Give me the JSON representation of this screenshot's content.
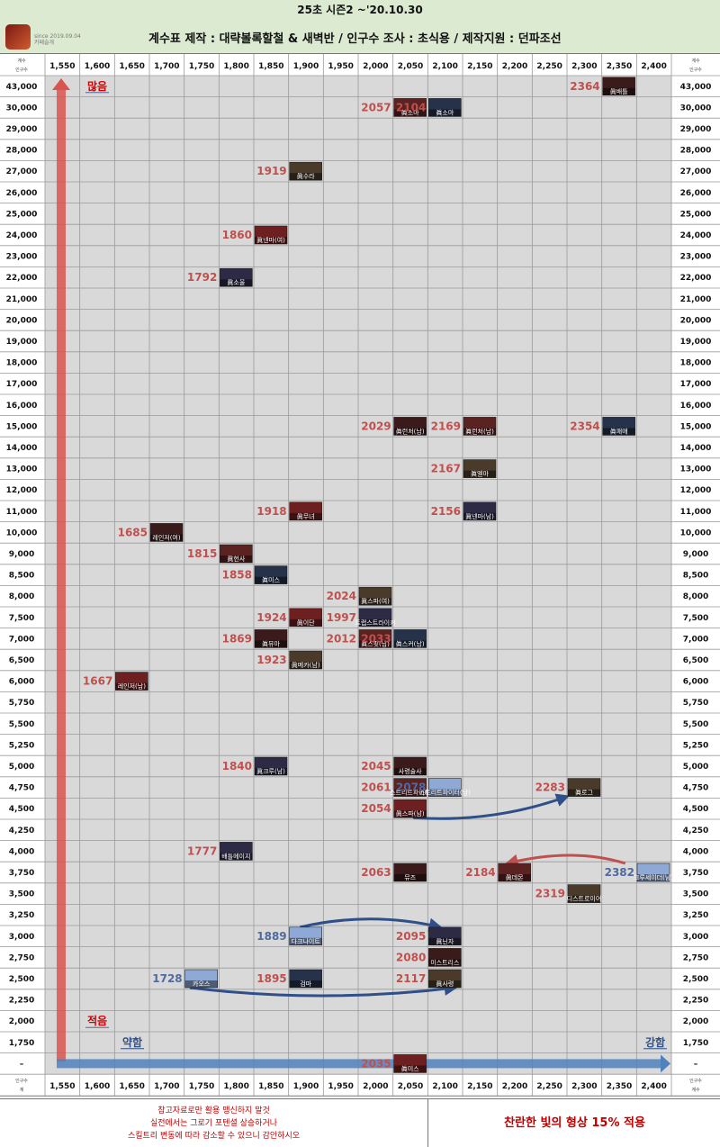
{
  "header": {
    "title": "25초 시즌2   ~'20.10.30",
    "credits": "계수표  제작 : 대략볼록할철 & 새벽반 / 인구수 조사 : 초식용 / 제작지원 : 던파조선",
    "logo_caption_1": "since 2019.09.04",
    "logo_caption_2": "카페슬개"
  },
  "axis": {
    "corner_top_small": "계수",
    "corner_bottom_small": "인구수",
    "corner_top_right_small": "계수",
    "corner_bottom_right_small": "인구수",
    "bottom_left_small_top": "인구수",
    "bottom_left_small_bottom": "계",
    "bottom_right_small_top": "인구수",
    "bottom_right_small_bottom": "계수",
    "x_ticks": [
      "1,550",
      "1,600",
      "1,650",
      "1,700",
      "1,750",
      "1,800",
      "1,850",
      "1,900",
      "1,950",
      "2,000",
      "2,050",
      "2,100",
      "2,150",
      "2,200",
      "2,250",
      "2,300",
      "2,350",
      "2,400"
    ],
    "y_ticks": [
      "43,000",
      "30,000",
      "29,000",
      "28,000",
      "27,000",
      "26,000",
      "25,000",
      "24,000",
      "23,000",
      "22,000",
      "21,000",
      "20,000",
      "19,000",
      "18,000",
      "17,000",
      "16,000",
      "15,000",
      "14,000",
      "13,000",
      "12,000",
      "11,000",
      "10,000",
      "9,000",
      "8,500",
      "8,000",
      "7,500",
      "7,000",
      "6,500",
      "6,000",
      "5,750",
      "5,500",
      "5,250",
      "5,000",
      "4,750",
      "4,500",
      "4,250",
      "4,000",
      "3,750",
      "3,500",
      "3,250",
      "3,000",
      "2,750",
      "2,500",
      "2,250",
      "2,000",
      "1,750",
      "–"
    ],
    "labels": {
      "many": "많음",
      "few": "적음",
      "weak": "약함",
      "strong": "강함"
    }
  },
  "chart_data": {
    "type": "scatter",
    "title": "25초 시즌2   ~'20.10.30",
    "xlabel": "계수",
    "ylabel": "인구수",
    "grid": true,
    "points": [
      {
        "x": 2364,
        "y": "43,000",
        "label": "眞배틀",
        "color": "#c0504d"
      },
      {
        "x": 2057,
        "y": "30,000",
        "label": "眞소마",
        "color": "#c0504d"
      },
      {
        "x": 2104,
        "y": "30,000",
        "label": "眞소마",
        "color": "#c0504d"
      },
      {
        "x": 1919,
        "y": "27,000",
        "label": "眞수라",
        "color": "#c0504d"
      },
      {
        "x": 1860,
        "y": "24,000",
        "label": "眞넨마(여)",
        "color": "#c0504d"
      },
      {
        "x": 1792,
        "y": "22,000",
        "label": "眞소울",
        "color": "#c0504d"
      },
      {
        "x": 2029,
        "y": "15,000",
        "label": "眞런처(남)",
        "color": "#c0504d"
      },
      {
        "x": 2169,
        "y": "15,000",
        "label": "眞런처(남)",
        "color": "#c0504d"
      },
      {
        "x": 2354,
        "y": "15,000",
        "label": "眞패매",
        "color": "#c0504d"
      },
      {
        "x": 2167,
        "y": "13,000",
        "label": "眞엘마",
        "color": "#c0504d"
      },
      {
        "x": 1918,
        "y": "11,000",
        "label": "眞무녀",
        "color": "#c0504d"
      },
      {
        "x": 2156,
        "y": "11,000",
        "label": "眞넨마(남)",
        "color": "#c0504d"
      },
      {
        "x": 1685,
        "y": "10,000",
        "label": "레인저(여)",
        "color": "#c0504d"
      },
      {
        "x": 1815,
        "y": "9,000",
        "label": "眞헌사",
        "color": "#c0504d"
      },
      {
        "x": 1858,
        "y": "8,500",
        "label": "眞미스",
        "color": "#c0504d"
      },
      {
        "x": 2024,
        "y": "8,000",
        "label": "眞스파(여)",
        "color": "#c0504d"
      },
      {
        "x": 1924,
        "y": "7,500",
        "label": "眞이단",
        "color": "#c0504d"
      },
      {
        "x": 1997,
        "y": "7,500",
        "label": "트랩스트라이커",
        "color": "#c0504d"
      },
      {
        "x": 1869,
        "y": "7,000",
        "label": "眞뮤마",
        "color": "#c0504d"
      },
      {
        "x": 2012,
        "y": "7,000",
        "label": "眞스핏(남)",
        "color": "#c0504d"
      },
      {
        "x": 2033,
        "y": "7,000",
        "label": "眞스커(남)",
        "color": "#c0504d"
      },
      {
        "x": 1923,
        "y": "6,500",
        "label": "眞메카(남)",
        "color": "#c0504d"
      },
      {
        "x": 1667,
        "y": "6,000",
        "label": "레인저(남)",
        "color": "#c0504d"
      },
      {
        "x": 1840,
        "y": "5,000",
        "label": "眞크루(남)",
        "color": "#c0504d"
      },
      {
        "x": 2045,
        "y": "5,000",
        "label": "사령술사",
        "color": "#c0504d"
      },
      {
        "x": 2061,
        "y": "4,750",
        "label": "스트리트파이터",
        "color": "#c0504d"
      },
      {
        "x": 2078,
        "y": "4,750",
        "label": "스트리트파이터(남)",
        "color": "#4f6a9e"
      },
      {
        "x": 2283,
        "y": "4,750",
        "label": "眞로그",
        "color": "#c0504d"
      },
      {
        "x": 2054,
        "y": "4,500",
        "label": "眞스파(남)",
        "color": "#c0504d"
      },
      {
        "x": 1777,
        "y": "4,000",
        "label": "배틀메이지",
        "color": "#c0504d"
      },
      {
        "x": 2063,
        "y": "3,750",
        "label": "뮤즈",
        "color": "#c0504d"
      },
      {
        "x": 2184,
        "y": "3,750",
        "label": "眞데몬",
        "color": "#c0504d"
      },
      {
        "x": 2382,
        "y": "3,750",
        "label": "크루세이더(남)",
        "color": "#4f6a9e"
      },
      {
        "x": 2319,
        "y": "3,500",
        "label": "디스트로이어",
        "color": "#c0504d"
      },
      {
        "x": 1889,
        "y": "3,000",
        "label": "다크나이트",
        "color": "#4f6a9e"
      },
      {
        "x": 2095,
        "y": "3,000",
        "label": "眞닌자",
        "color": "#c0504d"
      },
      {
        "x": 2080,
        "y": "2,750",
        "label": "미스트리스",
        "color": "#c0504d"
      },
      {
        "x": 1728,
        "y": "2,500",
        "label": "카오스",
        "color": "#4f6a9e"
      },
      {
        "x": 1895,
        "y": "2,500",
        "label": "검마",
        "color": "#c0504d"
      },
      {
        "x": 2117,
        "y": "2,500",
        "label": "眞사령",
        "color": "#c0504d"
      },
      {
        "x": 2035,
        "y": "–",
        "label": "眞미스",
        "color": "#c0504d"
      }
    ],
    "arrows": [
      {
        "from": "2054 · 4,500",
        "to": "2283 · 4,750",
        "color": "#2e4f88"
      },
      {
        "from": "2382 · 3,750",
        "to": "2184 · 3,750",
        "color": "#c0504d"
      },
      {
        "from": "1889 · 3,000",
        "to": "2095 · 3,000",
        "color": "#2e4f88"
      },
      {
        "from": "1728 · 2,500",
        "to": "2117 · 2,500",
        "color": "#2e4f88"
      }
    ]
  },
  "footer": {
    "note_1": "참고자료로만 활용 맹신하지 말것",
    "note_2": "실전에서는 그로기 포텐셜 상승하거나",
    "note_3": "스킬트리 변동에 따라 감소할 수 있으니 감안하시오",
    "apply": "찬란한 빛의 형상 15% 적용"
  },
  "colors": {
    "red": "#c0504d",
    "blue": "#4f6a9e",
    "grid": "#9a9a9a",
    "panel": "#d9d9d9",
    "header": "#dcead2"
  }
}
